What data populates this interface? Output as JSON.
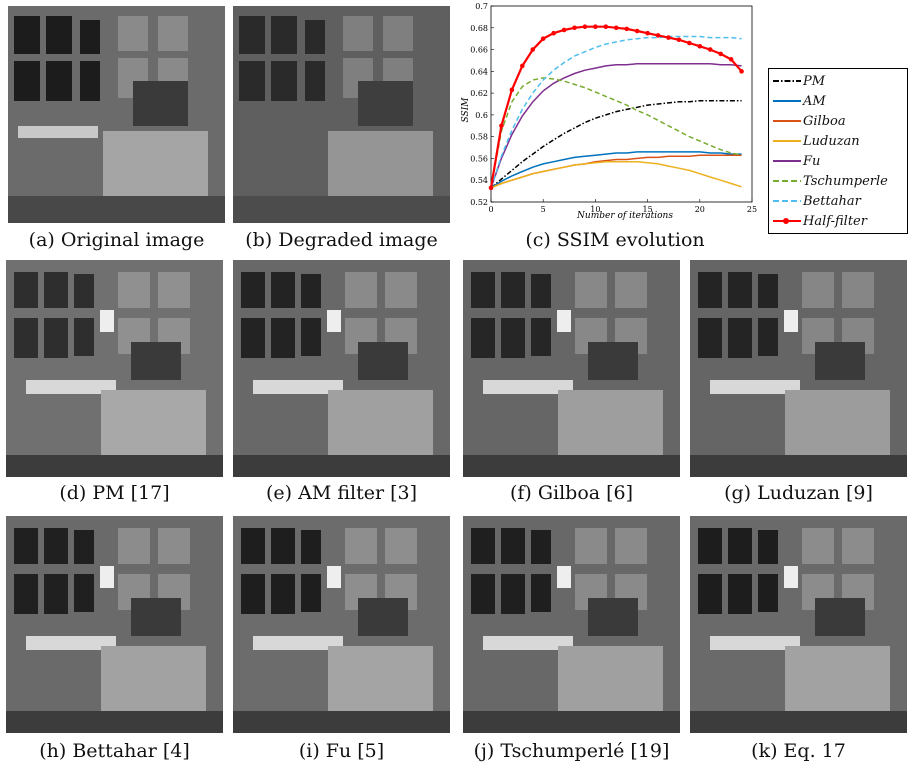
{
  "captions": {
    "a": "(a) Original image",
    "b": "(b) Degraded image",
    "c": "(c) SSIM evolution",
    "d": "(d) PM [17]",
    "e": "(e) AM filter [3]",
    "f": "(f) Gilboa [6]",
    "g": "(g) Luduzan [9]",
    "h": "(h) Bettahar [4]",
    "i": "(i) Fu [5]",
    "j": "(j) Tschumperlé [19]",
    "k": "(k) Eq. 17"
  },
  "chart_data": {
    "type": "line",
    "title": "",
    "xlabel": "Number of iterations",
    "ylabel": "SSIM",
    "xlim": [
      0,
      25
    ],
    "ylim": [
      0.52,
      0.7
    ],
    "xticks": [
      "0",
      "5",
      "10",
      "15",
      "20",
      "25"
    ],
    "yticks": [
      "0.52",
      "0.54",
      "0.56",
      "0.58",
      "0.6",
      "0.62",
      "0.64",
      "0.66",
      "0.68",
      "0.7"
    ],
    "grid": false,
    "legend_position": "right-outside",
    "x": [
      0,
      1,
      2,
      3,
      4,
      5,
      6,
      7,
      8,
      9,
      10,
      11,
      12,
      13,
      14,
      15,
      16,
      17,
      18,
      19,
      20,
      21,
      22,
      23,
      24
    ],
    "series": [
      {
        "name": "PM",
        "color": "#000000",
        "dash": "dashdot",
        "values": [
          0.533,
          0.541,
          0.549,
          0.557,
          0.564,
          0.571,
          0.577,
          0.583,
          0.588,
          0.593,
          0.597,
          0.6,
          0.603,
          0.605,
          0.607,
          0.609,
          0.61,
          0.611,
          0.612,
          0.612,
          0.613,
          0.613,
          0.613,
          0.613,
          0.613
        ]
      },
      {
        "name": "AM",
        "color": "#0072bd",
        "dash": "solid",
        "values": [
          0.533,
          0.539,
          0.544,
          0.548,
          0.552,
          0.555,
          0.557,
          0.559,
          0.561,
          0.562,
          0.563,
          0.564,
          0.565,
          0.565,
          0.566,
          0.566,
          0.566,
          0.566,
          0.566,
          0.566,
          0.566,
          0.565,
          0.565,
          0.564,
          0.564
        ]
      },
      {
        "name": "Gilboa",
        "color": "#d95319",
        "dash": "solid",
        "values": [
          0.533,
          0.537,
          0.54,
          0.543,
          0.546,
          0.548,
          0.55,
          0.552,
          0.554,
          0.555,
          0.557,
          0.558,
          0.559,
          0.559,
          0.56,
          0.561,
          0.561,
          0.562,
          0.562,
          0.562,
          0.563,
          0.563,
          0.563,
          0.563,
          0.563
        ]
      },
      {
        "name": "Luduzan",
        "color": "#edb120",
        "dash": "solid",
        "values": [
          0.533,
          0.537,
          0.54,
          0.543,
          0.546,
          0.548,
          0.55,
          0.552,
          0.554,
          0.555,
          0.556,
          0.557,
          0.557,
          0.557,
          0.557,
          0.556,
          0.555,
          0.553,
          0.551,
          0.549,
          0.546,
          0.543,
          0.54,
          0.537,
          0.534
        ]
      },
      {
        "name": "Fu",
        "color": "#7e2f8e",
        "dash": "solid",
        "values": [
          0.533,
          0.56,
          0.582,
          0.599,
          0.612,
          0.622,
          0.629,
          0.634,
          0.638,
          0.641,
          0.643,
          0.645,
          0.646,
          0.646,
          0.647,
          0.647,
          0.647,
          0.647,
          0.647,
          0.647,
          0.647,
          0.647,
          0.646,
          0.646,
          0.645
        ]
      },
      {
        "name": "Tschumperle",
        "color": "#77ac30",
        "dash": "dashed",
        "values": [
          0.533,
          0.585,
          0.612,
          0.626,
          0.632,
          0.634,
          0.633,
          0.631,
          0.628,
          0.625,
          0.621,
          0.617,
          0.613,
          0.609,
          0.604,
          0.6,
          0.595,
          0.59,
          0.585,
          0.58,
          0.576,
          0.572,
          0.568,
          0.565,
          0.563
        ]
      },
      {
        "name": "Bettahar",
        "color": "#4dbeee",
        "dash": "dashed",
        "values": [
          0.533,
          0.562,
          0.586,
          0.605,
          0.62,
          0.632,
          0.641,
          0.648,
          0.654,
          0.658,
          0.662,
          0.665,
          0.667,
          0.669,
          0.67,
          0.671,
          0.671,
          0.672,
          0.672,
          0.672,
          0.672,
          0.671,
          0.671,
          0.671,
          0.67
        ]
      },
      {
        "name": "Half-filter",
        "color": "#ff0000",
        "dash": "solid",
        "markers": true,
        "values": [
          0.533,
          0.59,
          0.623,
          0.645,
          0.66,
          0.67,
          0.675,
          0.678,
          0.68,
          0.681,
          0.681,
          0.681,
          0.68,
          0.679,
          0.677,
          0.675,
          0.673,
          0.671,
          0.669,
          0.666,
          0.663,
          0.66,
          0.656,
          0.651,
          0.64
        ]
      }
    ]
  }
}
